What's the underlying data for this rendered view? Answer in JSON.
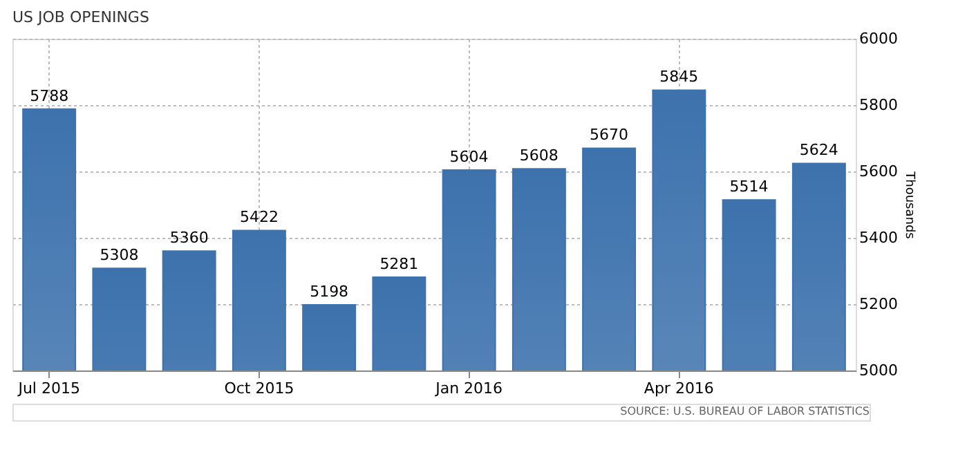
{
  "chart_data": {
    "type": "bar",
    "title": "US JOB OPENINGS",
    "ylabel": "Thousands",
    "categories": [
      "Jul 2015",
      null,
      null,
      "Oct 2015",
      null,
      null,
      "Jan 2016",
      null,
      null,
      "Apr 2016",
      null,
      null
    ],
    "values": [
      5788,
      5308,
      5360,
      5422,
      5198,
      5281,
      5604,
      5608,
      5670,
      5845,
      5514,
      5624
    ],
    "color": "#3d72ad",
    "ylim": [
      5000,
      6000
    ],
    "yticks": [
      5000,
      5200,
      5400,
      5600,
      5800,
      6000
    ],
    "grid": true,
    "data_labels": true,
    "annotations": [
      "SOURCE: U.S. BUREAU OF LABOR STATISTICS"
    ]
  }
}
